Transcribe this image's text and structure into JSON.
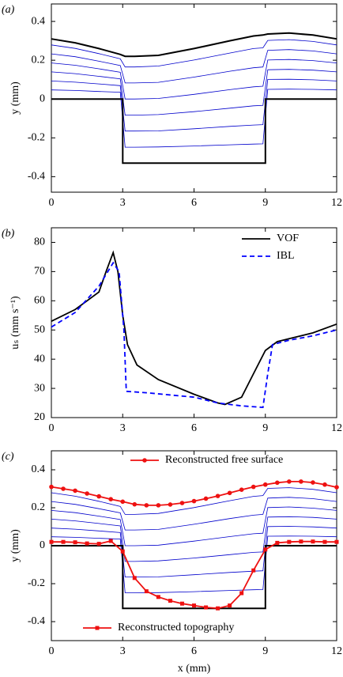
{
  "chart_data": [
    {
      "type": "line",
      "panel_label": "(a)",
      "ylabel": "y (mm)",
      "xlim": [
        0,
        12
      ],
      "xticks": [
        0,
        3,
        6,
        9,
        12
      ],
      "ylim": [
        -0.48,
        0.49
      ],
      "yticks": [
        -0.4,
        -0.2,
        0,
        0.2,
        0.4
      ],
      "x": [
        0,
        1,
        2,
        2.9,
        3.1,
        3.5,
        4.5,
        6,
        7.5,
        8.5,
        8.9,
        9.1,
        10,
        11,
        12
      ],
      "lines": [
        {
          "color": "#0000cc",
          "values": [
            0.047,
            0.044,
            0.039,
            0.035,
            -0.248,
            -0.248,
            -0.247,
            -0.242,
            -0.236,
            -0.232,
            -0.231,
            0.05,
            0.051,
            0.05,
            0.047
          ]
        },
        {
          "color": "#0000cc",
          "values": [
            0.093,
            0.087,
            0.078,
            0.069,
            -0.165,
            -0.165,
            -0.164,
            -0.153,
            -0.141,
            -0.134,
            -0.132,
            0.101,
            0.102,
            0.099,
            0.093
          ]
        },
        {
          "color": "#0000cc",
          "values": [
            0.14,
            0.131,
            0.117,
            0.104,
            -0.083,
            -0.083,
            -0.08,
            -0.065,
            -0.047,
            -0.035,
            -0.033,
            0.151,
            0.153,
            0.149,
            0.14
          ]
        },
        {
          "color": "#0000cc",
          "values": [
            0.186,
            0.174,
            0.156,
            0.138,
            0.0,
            0.0,
            0.003,
            0.024,
            0.048,
            0.063,
            0.066,
            0.201,
            0.204,
            0.198,
            0.186
          ]
        },
        {
          "color": "#0000cc",
          "values": [
            0.233,
            0.218,
            0.195,
            0.173,
            0.083,
            0.083,
            0.086,
            0.113,
            0.143,
            0.161,
            0.165,
            0.251,
            0.255,
            0.248,
            0.233
          ]
        },
        {
          "color": "#0000cc",
          "values": [
            0.279,
            0.261,
            0.234,
            0.207,
            0.165,
            0.165,
            0.17,
            0.201,
            0.237,
            0.26,
            0.264,
            0.302,
            0.306,
            0.297,
            0.279
          ]
        },
        {
          "color": "#000000",
          "values": [
            0.31,
            0.29,
            0.26,
            0.23,
            0.22,
            0.22,
            0.225,
            0.26,
            0.3,
            0.325,
            0.33,
            0.335,
            0.34,
            0.33,
            0.31
          ]
        },
        {
          "color": "#000000",
          "x": [
            0,
            3,
            3,
            9,
            9,
            12
          ],
          "values": [
            0,
            0,
            -0.33,
            -0.33,
            0,
            0
          ]
        }
      ]
    },
    {
      "type": "line",
      "panel_label": "(b)",
      "ylabel": "uₛ (mm s⁻¹)",
      "xlim": [
        0,
        12
      ],
      "xticks": [
        0,
        3,
        6,
        9,
        12
      ],
      "ylim": [
        20,
        85
      ],
      "yticks": [
        20,
        30,
        40,
        50,
        60,
        70,
        80
      ],
      "series": [
        {
          "name": "VOF",
          "color": "#000000",
          "legend": "top-right",
          "x": [
            0,
            1,
            2,
            2.3,
            2.6,
            2.8,
            3.0,
            3.2,
            3.6,
            4.5,
            6,
            7,
            7.3,
            8,
            8.5,
            9,
            9.5,
            10,
            11,
            12
          ],
          "values": [
            53,
            57,
            63,
            70,
            76.5,
            70,
            55,
            45,
            38,
            33,
            28,
            25,
            24.5,
            27,
            35,
            43,
            46,
            47,
            49,
            52
          ]
        },
        {
          "name": "IBL",
          "color": "#0000ff",
          "dash": true,
          "legend": "top-right",
          "x": [
            0,
            1,
            2,
            2.6,
            2.85,
            3.05,
            3.15,
            4,
            6,
            7,
            8,
            8.9,
            9.1,
            9.3,
            10,
            11,
            12
          ],
          "values": [
            51,
            56,
            65,
            73,
            70,
            50,
            29,
            28.5,
            27,
            25,
            24,
            23.5,
            35,
            45,
            46.5,
            48,
            50
          ]
        }
      ]
    },
    {
      "type": "line",
      "panel_label": "(c)",
      "ylabel": "y (mm)",
      "xlabel": "x (mm)",
      "xlim": [
        0,
        12
      ],
      "xticks": [
        0,
        3,
        6,
        9,
        12
      ],
      "ylim": [
        -0.5,
        0.5
      ],
      "yticks": [
        -0.4,
        -0.2,
        0,
        0.2,
        0.4
      ],
      "x": [
        0,
        1,
        2,
        2.9,
        3.1,
        3.5,
        4.5,
        6,
        7.5,
        8.5,
        8.9,
        9.1,
        10,
        11,
        12
      ],
      "lines": [
        {
          "color": "#0000cc",
          "values": [
            0.047,
            0.044,
            0.039,
            0.035,
            -0.248,
            -0.248,
            -0.247,
            -0.242,
            -0.236,
            -0.232,
            -0.231,
            0.05,
            0.051,
            0.05,
            0.047
          ]
        },
        {
          "color": "#0000cc",
          "values": [
            0.093,
            0.087,
            0.078,
            0.069,
            -0.165,
            -0.165,
            -0.164,
            -0.153,
            -0.141,
            -0.134,
            -0.132,
            0.101,
            0.102,
            0.099,
            0.093
          ]
        },
        {
          "color": "#0000cc",
          "values": [
            0.14,
            0.131,
            0.117,
            0.104,
            -0.083,
            -0.083,
            -0.08,
            -0.065,
            -0.047,
            -0.035,
            -0.033,
            0.151,
            0.153,
            0.149,
            0.14
          ]
        },
        {
          "color": "#0000cc",
          "values": [
            0.186,
            0.174,
            0.156,
            0.138,
            0.0,
            0.0,
            0.003,
            0.024,
            0.048,
            0.063,
            0.066,
            0.201,
            0.204,
            0.198,
            0.186
          ]
        },
        {
          "color": "#0000cc",
          "values": [
            0.233,
            0.218,
            0.195,
            0.173,
            0.083,
            0.083,
            0.086,
            0.113,
            0.143,
            0.161,
            0.165,
            0.251,
            0.255,
            0.248,
            0.233
          ]
        },
        {
          "color": "#0000cc",
          "values": [
            0.279,
            0.261,
            0.234,
            0.207,
            0.165,
            0.165,
            0.17,
            0.201,
            0.237,
            0.26,
            0.264,
            0.302,
            0.306,
            0.297,
            0.279
          ]
        },
        {
          "color": "#000000",
          "x": [
            0,
            3,
            3,
            9,
            9,
            12
          ],
          "values": [
            0,
            0,
            -0.33,
            -0.33,
            0,
            0
          ]
        }
      ],
      "series": [
        {
          "name": "Reconstructed free surface",
          "color": "#ee1111",
          "marker": "circle",
          "legend": "top",
          "x": [
            0,
            0.5,
            1,
            1.5,
            2,
            2.5,
            3,
            3.5,
            4,
            4.5,
            5,
            5.5,
            6,
            6.5,
            7,
            7.5,
            8,
            8.5,
            9,
            9.5,
            10,
            10.5,
            11,
            11.5,
            12
          ],
          "values": [
            0.31,
            0.3,
            0.29,
            0.275,
            0.26,
            0.245,
            0.232,
            0.218,
            0.213,
            0.213,
            0.217,
            0.225,
            0.235,
            0.248,
            0.262,
            0.278,
            0.295,
            0.31,
            0.322,
            0.332,
            0.338,
            0.338,
            0.333,
            0.322,
            0.308
          ]
        },
        {
          "name": "Reconstructed topography",
          "color": "#ee1111",
          "marker": "square",
          "legend": "bottom-left",
          "x": [
            0,
            0.5,
            1,
            1.5,
            2,
            2.5,
            3,
            3.5,
            4,
            4.5,
            5,
            5.5,
            6,
            6.5,
            7,
            7.5,
            8,
            8.5,
            9,
            9.5,
            10,
            10.5,
            11,
            11.5,
            12
          ],
          "values": [
            0.02,
            0.02,
            0.018,
            0.012,
            0.01,
            0.025,
            -0.03,
            -0.17,
            -0.24,
            -0.27,
            -0.29,
            -0.305,
            -0.315,
            -0.325,
            -0.33,
            -0.315,
            -0.25,
            -0.13,
            -0.02,
            0.015,
            0.02,
            0.022,
            0.022,
            0.02,
            0.02
          ]
        }
      ]
    }
  ]
}
